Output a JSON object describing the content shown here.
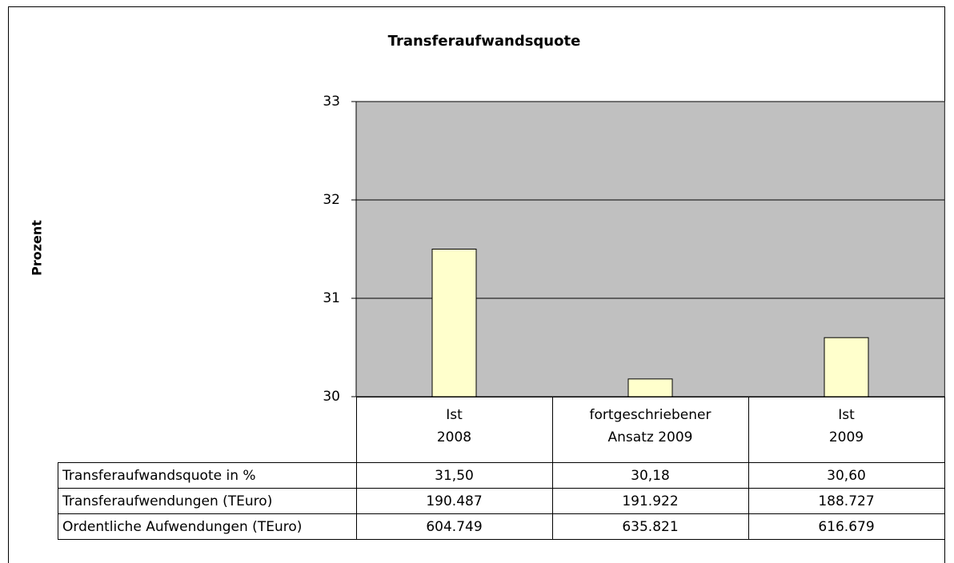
{
  "chart_data": {
    "type": "bar",
    "title": "Transferaufwandsquote",
    "y_label": "Prozent",
    "categories": [
      [
        "Ist",
        "2008"
      ],
      [
        "fortgeschriebener",
        "Ansatz 2009"
      ],
      [
        "Ist",
        "2009"
      ]
    ],
    "series": [
      {
        "name": "Transferaufwandsquote in %",
        "color": "#ffffcc",
        "values": [
          31.5,
          30.18,
          30.6
        ],
        "value_labels": [
          "31,50",
          "30,18",
          "30,60"
        ]
      }
    ],
    "ylim": [
      30,
      33
    ],
    "yticks": [
      30,
      31,
      32,
      33
    ],
    "grid": true,
    "plot_background": "#c0c0c0",
    "data_table": {
      "rows": [
        {
          "name": "Transferaufwendungen (TEuro)",
          "cells": [
            "190.487",
            "191.922",
            "188.727"
          ]
        },
        {
          "name": "Ordentliche Aufwendungen (TEuro)",
          "cells": [
            "604.749",
            "635.821",
            "616.679"
          ]
        }
      ]
    }
  }
}
